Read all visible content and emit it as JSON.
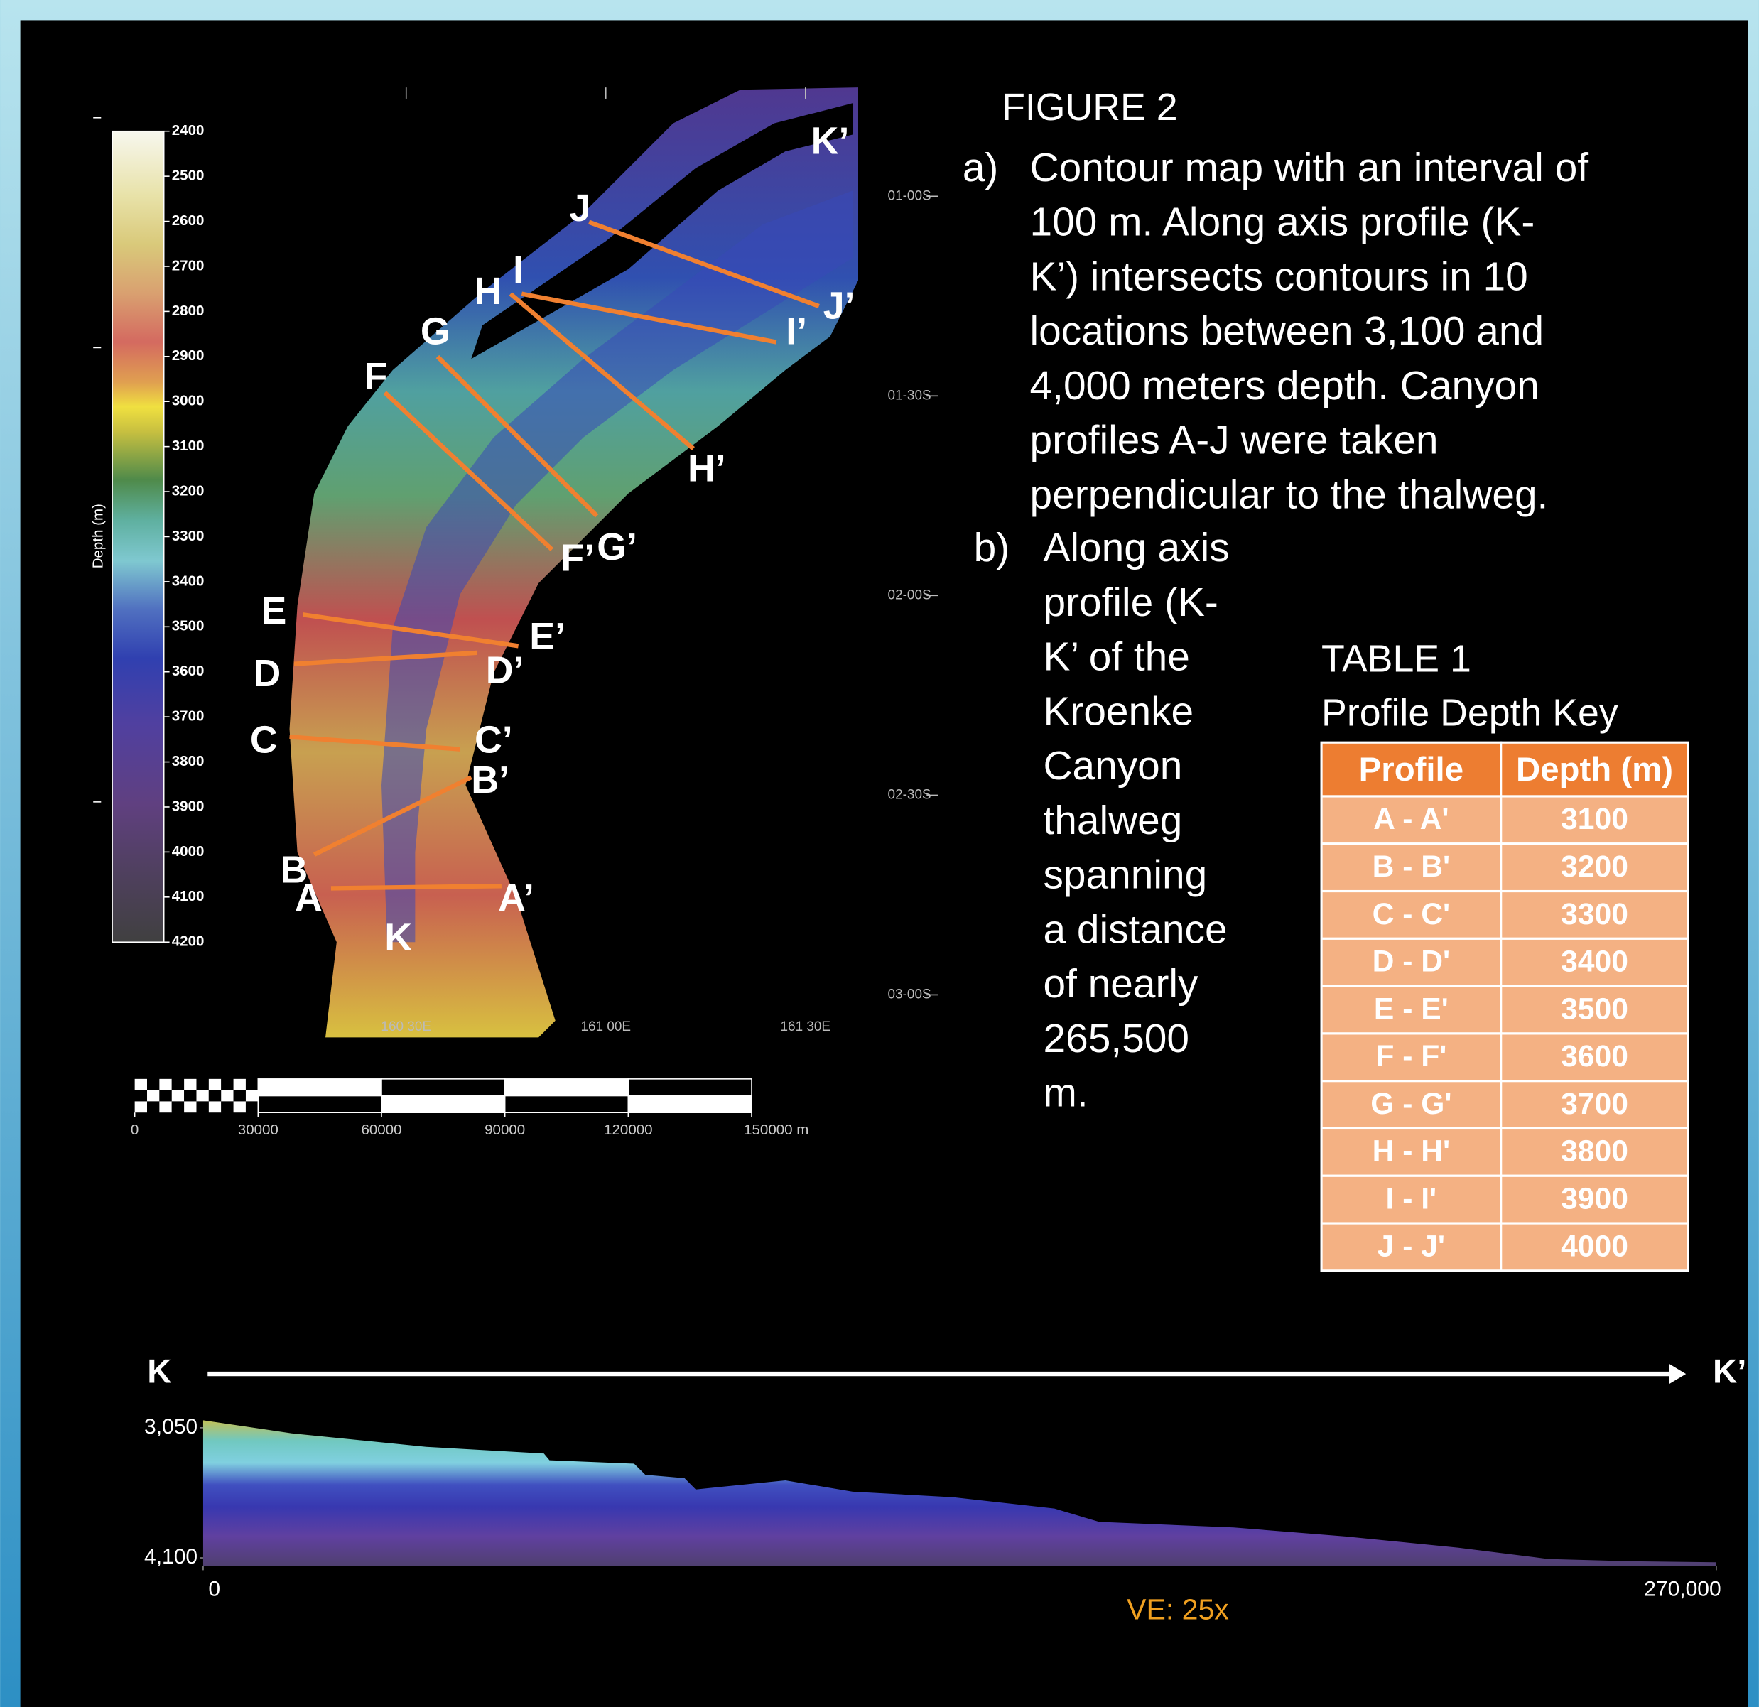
{
  "figure_title": "FIGURE 2",
  "caption": {
    "a": {
      "marker": "a)",
      "lines": [
        "Contour map with an interval of",
        "100 m. Along axis profile (K-",
        "K’) intersects contours in 10",
        "locations between 3,100 and",
        "4,000 meters depth. Canyon",
        "profiles A-J were taken",
        "perpendicular to the thalweg."
      ]
    },
    "b": {
      "marker": "b)",
      "lines": [
        "Along axis",
        "profile (K-",
        "K’ of the",
        "Kroenke",
        "Canyon",
        "thalweg",
        "spanning",
        "a distance",
        "of nearly",
        "265,500",
        "m."
      ]
    }
  },
  "map": {
    "colorbar": {
      "label": "Depth (m)",
      "lim": [
        2400,
        4200
      ],
      "ticks": [
        2400,
        2500,
        2600,
        2700,
        2800,
        2900,
        3000,
        3100,
        3200,
        3300,
        3400,
        3500,
        3600,
        3700,
        3800,
        3900,
        4000,
        4100,
        4200
      ]
    },
    "axis_label_start": "K",
    "axis_label_end": "K’",
    "profile_labels": [
      {
        "start": "A",
        "end": "A’"
      },
      {
        "start": "B",
        "end": "B’"
      },
      {
        "start": "C",
        "end": "C’"
      },
      {
        "start": "D",
        "end": "D’"
      },
      {
        "start": "E",
        "end": "E’"
      },
      {
        "start": "F",
        "end": "F’"
      },
      {
        "start": "G",
        "end": "G’"
      },
      {
        "start": "H",
        "end": "H’"
      },
      {
        "start": "I",
        "end": "I’"
      },
      {
        "start": "J",
        "end": "J’"
      }
    ],
    "latitude_labels": [
      "01-00S",
      "01-30S",
      "02-00S",
      "02-30S",
      "03-00S"
    ],
    "longitude_labels": [
      "160 30E",
      "161 00E",
      "161 30E"
    ],
    "scale_bar": {
      "lim": [
        0,
        150000
      ],
      "ticks": [
        0,
        30000,
        60000,
        90000,
        120000,
        {
          "value": 150000,
          "label": "150000 m"
        }
      ]
    }
  },
  "table": {
    "title": "TABLE 1",
    "subtitle": "Profile Depth Key",
    "header": [
      "Profile",
      "Depth (m)"
    ],
    "rows": [
      [
        "A - A'",
        3100
      ],
      [
        "B - B'",
        3200
      ],
      [
        "C - C'",
        3300
      ],
      [
        "D - D'",
        3400
      ],
      [
        "E - E'",
        3500
      ],
      [
        "F - F'",
        3600
      ],
      [
        "G - G'",
        3700
      ],
      [
        "H - H'",
        3800
      ],
      [
        "I - I'",
        3900
      ],
      [
        "J - J'",
        4000
      ]
    ]
  },
  "chart_data": {
    "type": "area",
    "start_label": "K",
    "end_label": "K’",
    "x": [
      0,
      15800,
      39800,
      60800,
      61800,
      76900,
      78900,
      85900,
      87900,
      103900,
      115900,
      133900,
      151900,
      159900,
      183900,
      204000,
      224000,
      240000,
      254000,
      270000
    ],
    "values": [
      2990,
      3095,
      3204,
      3258,
      3312,
      3340,
      3430,
      3457,
      3548,
      3475,
      3566,
      3611,
      3702,
      3810,
      3855,
      3928,
      4018,
      4109,
      4127,
      4136
    ],
    "xlim": [
      0,
      270000
    ],
    "xticks": [
      0,
      {
        "value": 270000,
        "label": "270,000"
      }
    ],
    "ylim": [
      3050,
      4100
    ],
    "yticks": [
      {
        "value": 3050,
        "label": "3,050"
      },
      {
        "value": 4100,
        "label": "4,100"
      }
    ],
    "y_inverted": true,
    "annotation": "VE: 25x"
  }
}
